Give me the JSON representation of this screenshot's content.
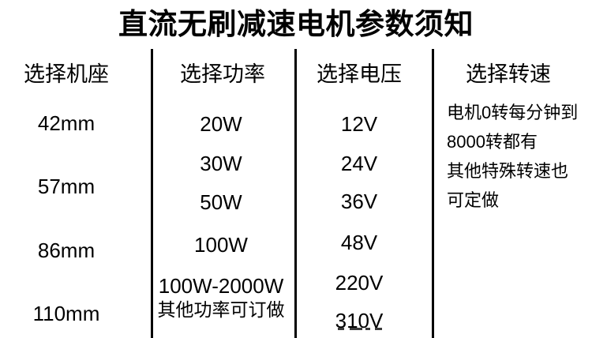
{
  "title": "直流无刷减速电机参数须知",
  "columns": [
    {
      "header": "选择机座",
      "items": [
        "42mm",
        "57mm",
        "86mm",
        "110mm"
      ]
    },
    {
      "header": "选择功率",
      "items": [
        "20W",
        "30W",
        "50W",
        "100W",
        "100W-2000W",
        "其他功率可订做"
      ]
    },
    {
      "header": "选择电压",
      "items": [
        "12V",
        "24V",
        "36V",
        "48V",
        "220V",
        "310V"
      ]
    },
    {
      "header": "选择转速",
      "lines": [
        "电机0转每分钟到",
        "8000转都有",
        "其他特殊转速也",
        "可定做"
      ]
    }
  ],
  "colors": {
    "text": "#000000",
    "background": "#ffffff",
    "divider": "#000000"
  }
}
